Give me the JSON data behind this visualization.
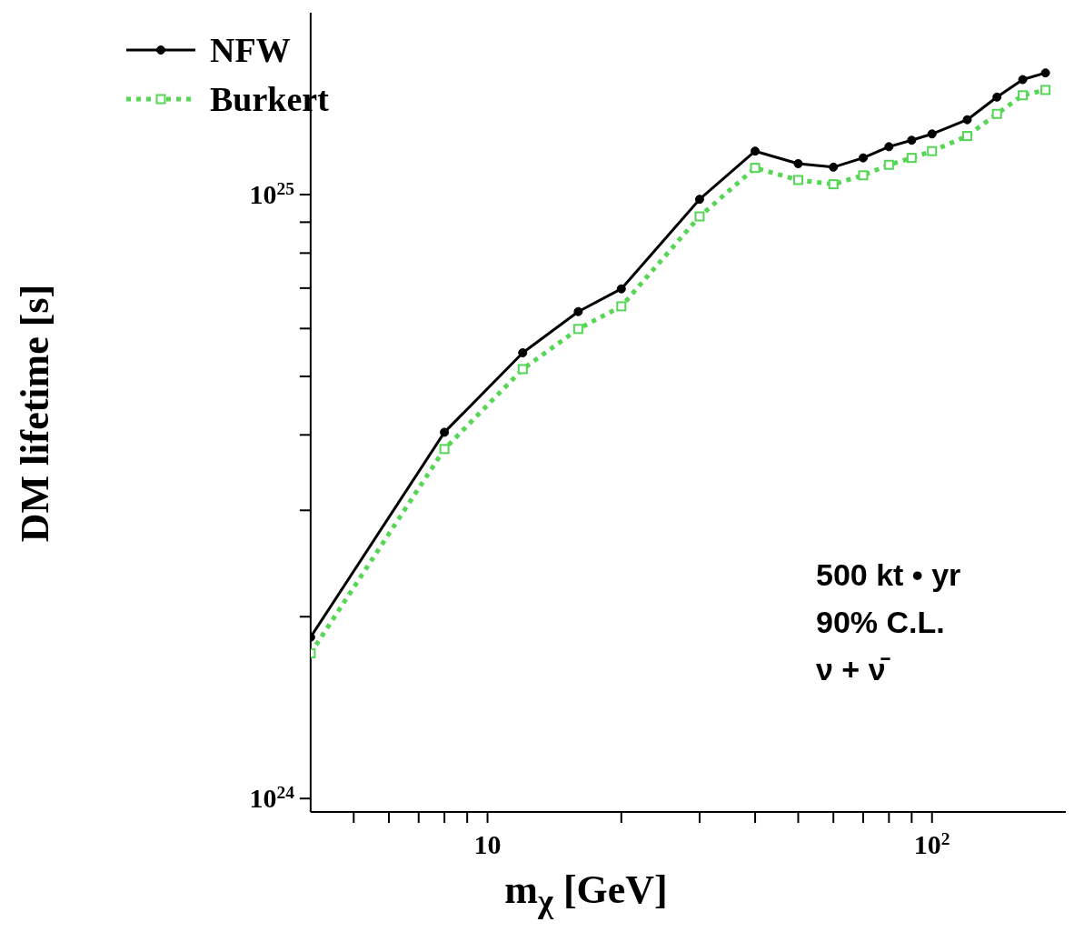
{
  "chart_data": {
    "type": "line",
    "xlabel": "m$_{χ}$ [GeV]",
    "ylabel": "DM lifetime [s]",
    "x": [
      4,
      8,
      12,
      16,
      20,
      30,
      40,
      50,
      60,
      70,
      80,
      90,
      100,
      120,
      140,
      160,
      180
    ],
    "series": [
      {
        "name": "NFW",
        "color": "#000000",
        "marker": "circle",
        "line_style": "solid",
        "values": [
          1.85e+24,
          4.04e+24,
          5.47e+24,
          6.4e+24,
          6.98e+24,
          9.82e+24,
          1.18e+25,
          1.125e+25,
          1.11e+25,
          1.15e+25,
          1.2e+25,
          1.23e+25,
          1.26e+25,
          1.33e+25,
          1.45e+25,
          1.55e+25,
          1.59e+25
        ]
      },
      {
        "name": "Burkert",
        "color": "#55d655",
        "marker": "square",
        "line_style": "dotted",
        "values": [
          1.74e+24,
          3.79e+24,
          5.14e+24,
          5.99e+24,
          6.53e+24,
          9.2e+24,
          1.107e+25,
          1.057e+25,
          1.04e+25,
          1.076e+25,
          1.12e+25,
          1.15e+25,
          1.18e+25,
          1.25e+25,
          1.36e+25,
          1.46e+25,
          1.49e+25
        ]
      }
    ],
    "log": "xy",
    "xlim": [
      4,
      200
    ],
    "ylim": [
      9.5e+23,
      2e+25
    ],
    "xticks": [
      {
        "value": 5,
        "label": null
      },
      {
        "value": 6,
        "label": null
      },
      {
        "value": 7,
        "label": null
      },
      {
        "value": 8,
        "label": null
      },
      {
        "value": 9,
        "label": null
      },
      10,
      {
        "value": 20,
        "label": null
      },
      {
        "value": 30,
        "label": null
      },
      {
        "value": 40,
        "label": null
      },
      {
        "value": 50,
        "label": null
      },
      {
        "value": 60,
        "label": null
      },
      {
        "value": 70,
        "label": null
      },
      {
        "value": 80,
        "label": null
      },
      {
        "value": 90,
        "label": null
      },
      {
        "value": 100,
        "label": "10$^{2}$"
      }
    ],
    "yticks": [
      {
        "value": 1e+24,
        "label": "10$^{24}$"
      },
      {
        "value": 2e+24,
        "label": null
      },
      {
        "value": 3e+24,
        "label": null
      },
      {
        "value": 4e+24,
        "label": null
      },
      {
        "value": 5e+24,
        "label": null
      },
      {
        "value": 6e+24,
        "label": null
      },
      {
        "value": 7e+24,
        "label": null
      },
      {
        "value": 8e+24,
        "label": null
      },
      {
        "value": 9e+24,
        "label": null
      },
      {
        "value": 1e+25,
        "label": "10$^{25}$"
      }
    ],
    "grid": false,
    "legend": "top left",
    "annotations": [
      "500 kt • yr",
      "90% C.L.",
      "ν + ν̄"
    ]
  }
}
